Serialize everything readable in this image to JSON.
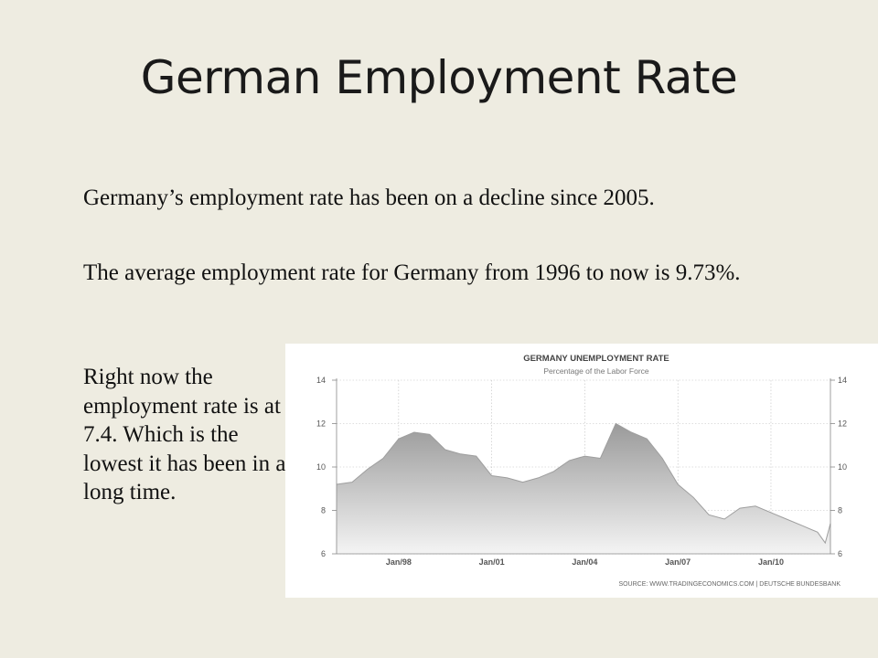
{
  "slide": {
    "title": "German Employment Rate",
    "paragraphs": [
      "Germany’s employment rate has been on a decline since 2005.",
      "The average employment rate for Germany from 1996 to now is 9.73%.",
      "Right now the employment rate is at 7.4. Which is the lowest it has been in a long time."
    ]
  },
  "chart_data": {
    "type": "area",
    "title": "GERMANY UNEMPLOYMENT RATE",
    "subtitle": "Percentage of the Labor Force",
    "source": "SOURCE: WWW.TRADINGECONOMICS.COM | DEUTSCHE BUNDESBANK",
    "xlabel": "",
    "ylabel": "",
    "x_tick_labels": [
      "Jan/98",
      "Jan/01",
      "Jan/04",
      "Jan/07",
      "Jan/10"
    ],
    "y_tick_labels": [
      "6",
      "8",
      "10",
      "12",
      "14"
    ],
    "ylim": [
      6,
      14
    ],
    "xlim": [
      "1996-01",
      "2011-12"
    ],
    "grid": true,
    "y_axis_both_sides": true,
    "colors": {
      "fill_top": "#9a9a9a",
      "fill_bottom": "#f4f4f4",
      "line": "#9e9e9e",
      "grid": "#bfbfbf"
    },
    "x": [
      "1996-01",
      "1996-07",
      "1997-01",
      "1997-07",
      "1998-01",
      "1998-07",
      "1999-01",
      "1999-07",
      "2000-01",
      "2000-07",
      "2001-01",
      "2001-07",
      "2002-01",
      "2002-07",
      "2003-01",
      "2003-07",
      "2004-01",
      "2004-07",
      "2005-01",
      "2005-07",
      "2006-01",
      "2006-07",
      "2007-01",
      "2007-07",
      "2008-01",
      "2008-07",
      "2009-01",
      "2009-07",
      "2010-01",
      "2010-07",
      "2011-01",
      "2011-07",
      "2011-10",
      "2011-12"
    ],
    "y": [
      9.2,
      9.3,
      9.9,
      10.4,
      11.3,
      11.6,
      11.5,
      10.8,
      10.6,
      10.5,
      9.6,
      9.5,
      9.3,
      9.5,
      9.8,
      10.3,
      10.5,
      10.4,
      12.0,
      11.6,
      11.3,
      10.4,
      9.2,
      8.6,
      7.8,
      7.6,
      8.1,
      8.2,
      7.9,
      7.6,
      7.3,
      7.0,
      6.5,
      7.4
    ]
  }
}
